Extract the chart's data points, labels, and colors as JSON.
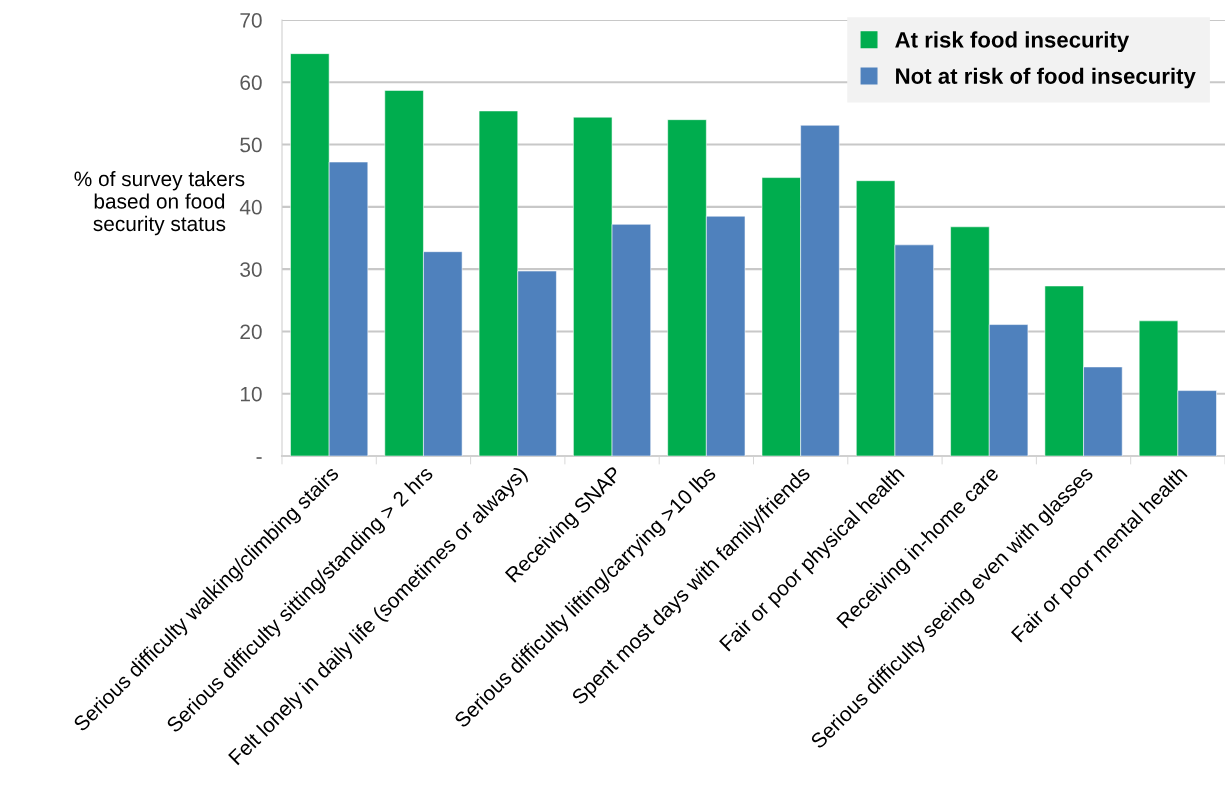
{
  "chart_data": {
    "type": "bar",
    "ylabel": "% of survey takers\nbased on food\nsecurity status",
    "categories": [
      "Serious difficulty walking/climbing stairs",
      "Serious difficulty sitting/standing > 2 hrs",
      "Felt lonely in daily life (sometimes or always)",
      "Receiving SNAP",
      "Serious difficulty lifting/carrying >10 lbs",
      "Spent most days with family/friends",
      "Fair or poor physical health",
      "Receiving in-home care",
      "Serious difficulty seeing even with glasses",
      "Fair or poor mental health"
    ],
    "series": [
      {
        "name": "At risk food insecurity",
        "color": "#00ad4e",
        "values": [
          64.6,
          58.7,
          55.4,
          54.4,
          54.0,
          44.7,
          44.2,
          36.8,
          27.3,
          21.7
        ]
      },
      {
        "name": "Not at risk of food insecurity",
        "color": "#4f81bd",
        "values": [
          47.2,
          32.8,
          29.7,
          37.2,
          38.5,
          53.1,
          33.9,
          21.1,
          14.3,
          10.5
        ]
      }
    ],
    "ylim": [
      0,
      70
    ],
    "yticks": [
      {
        "value": 0,
        "label": "-"
      },
      10,
      20,
      30,
      40,
      50,
      60,
      70
    ],
    "grid": "y",
    "legend": "top right"
  }
}
